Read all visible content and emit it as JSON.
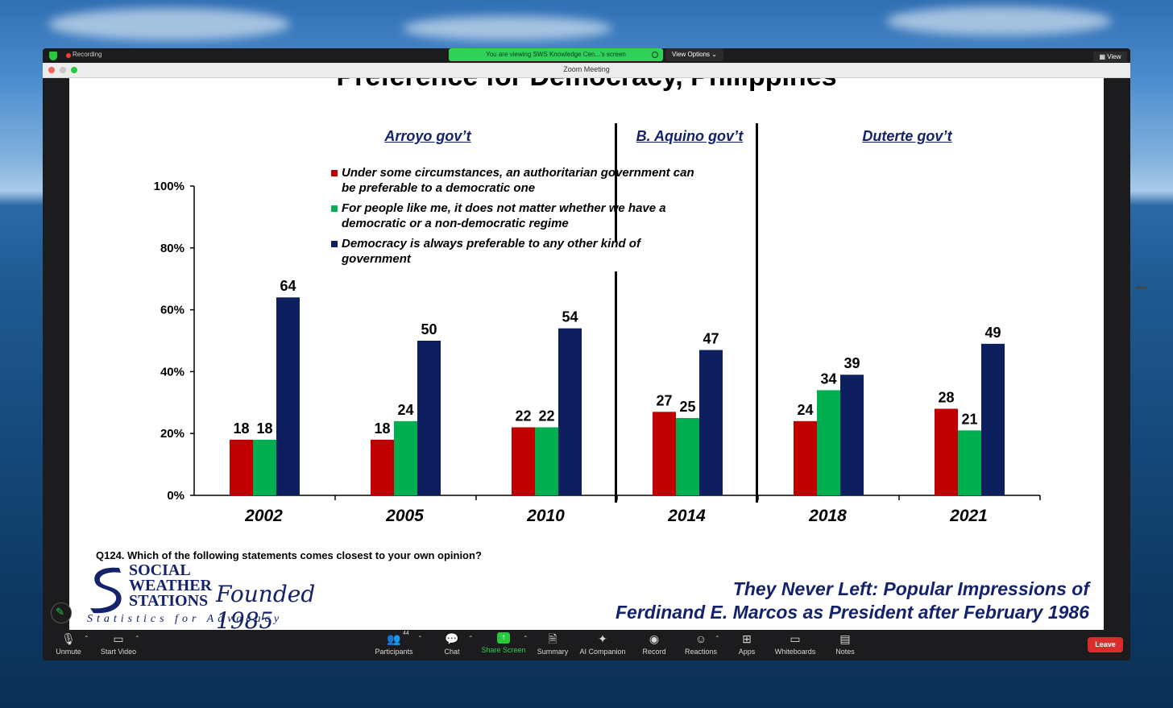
{
  "window": {
    "title": "Zoom Meeting",
    "recording_label": "Recording",
    "viewing_banner": "You are viewing SWS Knowledge Cen...'s screen",
    "view_options_label": "View Options",
    "view_label": "View"
  },
  "slide": {
    "title": "Preference for Democracy, Philippines",
    "eras": [
      {
        "label": "Arroyo gov’t"
      },
      {
        "label": "B. Aquino gov’t"
      },
      {
        "label": "Duterte gov’t"
      }
    ],
    "legend": [
      {
        "label": "Under some circumstances, an authoritarian government can be preferable to a democratic one",
        "color": "#c00000"
      },
      {
        "label": "For people like me, it does not matter whether we have a democratic or a non-democratic regime",
        "color": "#00b050"
      },
      {
        "label": "Democracy is always preferable to any other kind of government",
        "color": "#0d1f5e"
      }
    ],
    "question": "Q124.  Which of the following statements comes closest to your own opinion?",
    "logo": {
      "line1": "SOCIAL",
      "line2": "WEATHER",
      "line3": "STATIONS",
      "founded": "Founded 1985",
      "tagline": "Statistics for Advocacy"
    },
    "footer_line1": "They Never Left: Popular Impressions of",
    "footer_line2": "Ferdinand E. Marcos as President after February 1986"
  },
  "chart_data": {
    "type": "bar",
    "categories": [
      "2002",
      "2005",
      "2010",
      "2014",
      "2018",
      "2021"
    ],
    "series": [
      {
        "name": "Under some circumstances, an authoritarian government can be preferable to a democratic one",
        "values": [
          18,
          18,
          22,
          27,
          24,
          28
        ],
        "color": "#c00000"
      },
      {
        "name": "For people like me, it does not matter whether we have a democratic or a non-democratic regime",
        "values": [
          18,
          24,
          22,
          25,
          34,
          21
        ],
        "color": "#00b050"
      },
      {
        "name": "Democracy is always preferable to any other kind of government",
        "values": [
          64,
          50,
          54,
          47,
          39,
          49
        ],
        "color": "#0d1f5e"
      }
    ],
    "yticks": [
      "0%",
      "20%",
      "40%",
      "60%",
      "80%",
      "100%"
    ],
    "ylim": [
      0,
      100
    ],
    "grid": false,
    "legend_position": "top-center"
  },
  "toolbar": {
    "unmute": "Unmute",
    "start_video": "Start Video",
    "participants": "Participants",
    "participant_count": "44",
    "chat": "Chat",
    "share_screen": "Share Screen",
    "summary": "Summary",
    "ai_companion": "AI Companion",
    "record": "Record",
    "reactions": "Reactions",
    "apps": "Apps",
    "whiteboards": "Whiteboards",
    "notes": "Notes",
    "leave": "Leave"
  }
}
